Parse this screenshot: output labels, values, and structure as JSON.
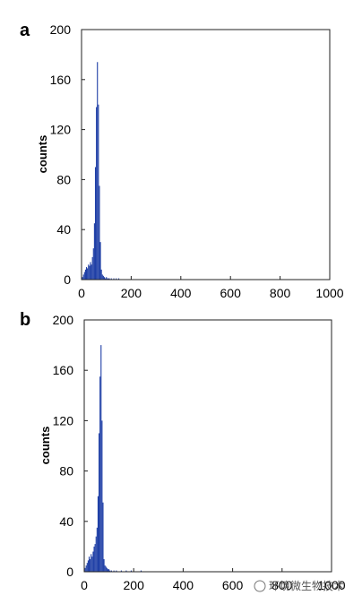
{
  "chart_data": [
    {
      "panel": "a",
      "type": "histogram",
      "xlabel": "",
      "ylabel": "counts",
      "xlim": [
        0,
        1000
      ],
      "ylim": [
        0,
        200
      ],
      "xticks": [
        0,
        200,
        400,
        600,
        800,
        1000
      ],
      "yticks": [
        0,
        40,
        80,
        120,
        160,
        200
      ],
      "bin_width": 4,
      "bar_color": "#1f3fa6",
      "bins": [
        [
          4,
          2
        ],
        [
          8,
          4
        ],
        [
          12,
          6
        ],
        [
          16,
          8
        ],
        [
          20,
          10
        ],
        [
          24,
          9
        ],
        [
          28,
          12
        ],
        [
          32,
          11
        ],
        [
          36,
          14
        ],
        [
          40,
          12
        ],
        [
          44,
          18
        ],
        [
          48,
          25
        ],
        [
          52,
          45
        ],
        [
          56,
          90
        ],
        [
          60,
          138
        ],
        [
          64,
          174
        ],
        [
          68,
          140
        ],
        [
          72,
          75
        ],
        [
          76,
          30
        ],
        [
          80,
          8
        ],
        [
          84,
          4
        ],
        [
          88,
          3
        ],
        [
          92,
          2
        ],
        [
          96,
          1
        ],
        [
          100,
          2
        ],
        [
          104,
          1
        ],
        [
          108,
          1
        ],
        [
          112,
          1
        ],
        [
          120,
          1
        ],
        [
          130,
          1
        ],
        [
          140,
          1
        ],
        [
          150,
          1
        ]
      ]
    },
    {
      "panel": "b",
      "type": "histogram",
      "xlabel": "",
      "ylabel": "counts",
      "xlim": [
        0,
        1000
      ],
      "ylim": [
        0,
        200
      ],
      "xticks": [
        0,
        200,
        400,
        600,
        800,
        1000
      ],
      "yticks": [
        0,
        40,
        80,
        120,
        160,
        200
      ],
      "bin_width": 4,
      "bar_color": "#1f3fa6",
      "bins": [
        [
          4,
          3
        ],
        [
          8,
          5
        ],
        [
          12,
          7
        ],
        [
          16,
          9
        ],
        [
          20,
          12
        ],
        [
          24,
          10
        ],
        [
          28,
          14
        ],
        [
          32,
          12
        ],
        [
          36,
          16
        ],
        [
          40,
          20
        ],
        [
          44,
          22
        ],
        [
          48,
          28
        ],
        [
          52,
          35
        ],
        [
          56,
          60
        ],
        [
          60,
          110
        ],
        [
          64,
          155
        ],
        [
          68,
          180
        ],
        [
          72,
          120
        ],
        [
          76,
          55
        ],
        [
          80,
          10
        ],
        [
          84,
          5
        ],
        [
          88,
          4
        ],
        [
          92,
          3
        ],
        [
          96,
          2
        ],
        [
          100,
          2
        ],
        [
          104,
          1
        ],
        [
          110,
          1
        ],
        [
          120,
          1
        ],
        [
          130,
          1
        ],
        [
          150,
          1
        ],
        [
          170,
          1
        ],
        [
          190,
          1
        ],
        [
          230,
          1
        ]
      ]
    }
  ],
  "watermark": "环境微生物技术"
}
